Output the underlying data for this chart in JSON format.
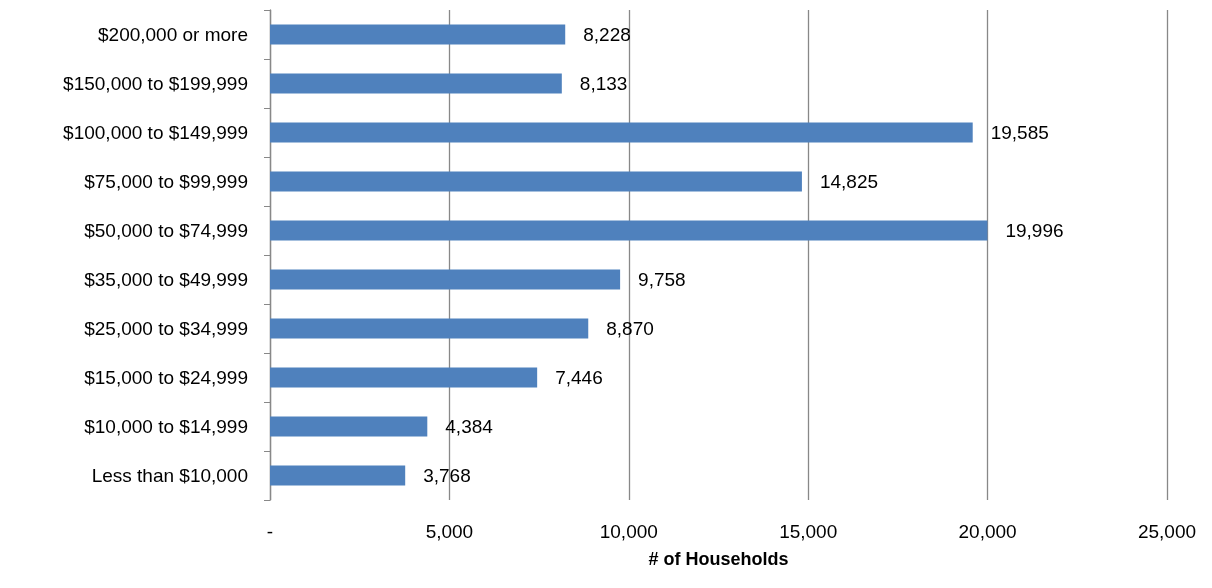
{
  "chart_data": {
    "type": "bar",
    "orientation": "horizontal",
    "xlabel": "# of Households",
    "categories": [
      "$200,000 or more",
      "$150,000 to $199,999",
      "$100,000 to $149,999",
      "$75,000 to $99,999",
      "$50,000 to $74,999",
      "$35,000 to $49,999",
      "$25,000 to $34,999",
      "$15,000 to $24,999",
      "$10,000 to $14,999",
      "Less than $10,000"
    ],
    "values": [
      8228,
      8133,
      19585,
      14825,
      19996,
      9758,
      8870,
      7446,
      4384,
      3768
    ],
    "value_labels": [
      "8,228",
      "8,133",
      "19,585",
      "14,825",
      "19,996",
      "9,758",
      "8,870",
      "7,446",
      "4,384",
      "3,768"
    ],
    "color": "#4f81bd",
    "xlim": [
      0,
      25000
    ],
    "xticks": [
      {
        "value": 0,
        "label": "-"
      },
      {
        "value": 5000,
        "label": "5,000"
      },
      {
        "value": 10000,
        "label": "10,000"
      },
      {
        "value": 15000,
        "label": "15,000"
      },
      {
        "value": 20000,
        "label": "20,000"
      },
      {
        "value": 25000,
        "label": "25,000"
      }
    ],
    "grid": "x"
  }
}
